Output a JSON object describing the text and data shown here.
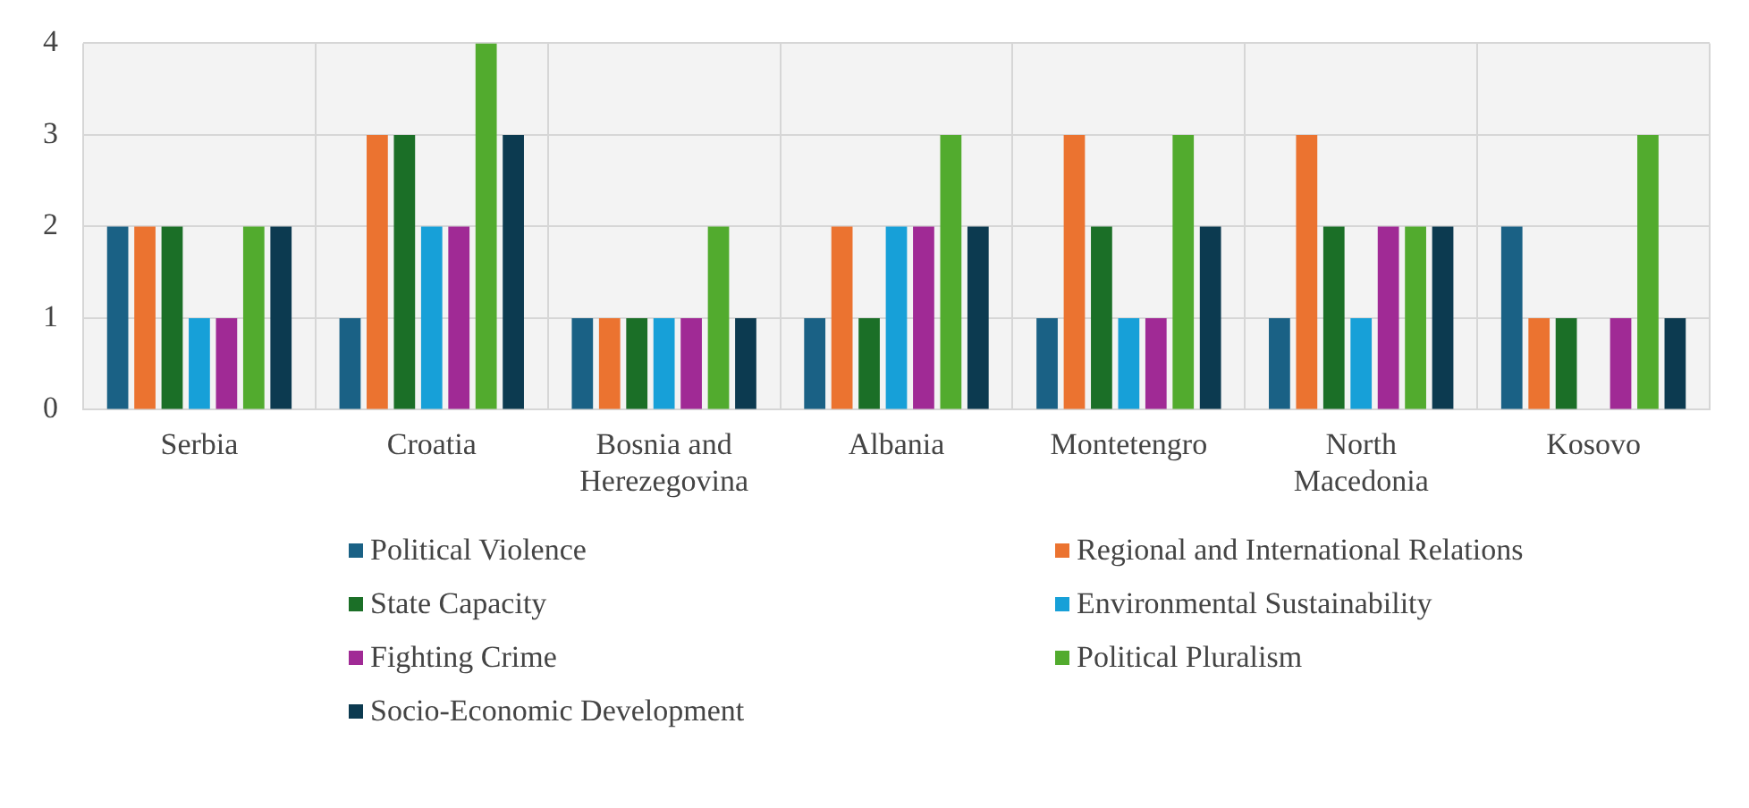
{
  "chart_data": {
    "type": "bar",
    "categories": [
      "Serbia",
      "Croatia",
      "Bosnia and Herezegovina",
      "Albania",
      "Montetengro",
      "North Macedonia",
      "Kosovo"
    ],
    "series": [
      {
        "name": "Political Violence",
        "color": "#1a6185",
        "values": [
          2,
          1,
          1,
          1,
          1,
          1,
          2
        ]
      },
      {
        "name": "Regional and International Relations",
        "color": "#eb7330",
        "values": [
          2,
          3,
          1,
          2,
          3,
          3,
          1
        ]
      },
      {
        "name": "State Capacity",
        "color": "#1b6f27",
        "values": [
          2,
          3,
          1,
          1,
          2,
          2,
          1
        ]
      },
      {
        "name": "Environmental Sustainability",
        "color": "#17a0d8",
        "values": [
          1,
          2,
          1,
          2,
          1,
          1,
          0
        ]
      },
      {
        "name": "Fighting Crime",
        "color": "#a02a95",
        "values": [
          1,
          2,
          1,
          2,
          1,
          2,
          1
        ]
      },
      {
        "name": "Political Pluralism",
        "color": "#52ab2e",
        "values": [
          2,
          4,
          2,
          3,
          3,
          2,
          3
        ]
      },
      {
        "name": "Socio-Economic Development",
        "color": "#0c3a50",
        "values": [
          2,
          3,
          1,
          2,
          2,
          2,
          1
        ]
      }
    ],
    "ylim": [
      0,
      4
    ],
    "yticks": [
      0,
      1,
      2,
      3,
      4
    ],
    "grid": true,
    "legend": "bottom"
  }
}
